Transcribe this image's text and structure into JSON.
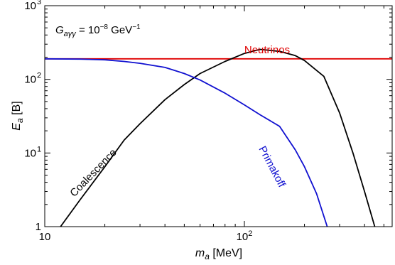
{
  "chart_data": {
    "type": "line",
    "title": "",
    "xlabel": {
      "symbol": "m",
      "subscript": "a",
      "unit": "[MeV]"
    },
    "ylabel": {
      "symbol": "E",
      "subscript": "a",
      "unit": "[B]"
    },
    "x_scale": "log",
    "y_scale": "log",
    "xlim": [
      10,
      550
    ],
    "ylim": [
      1,
      1000
    ],
    "x_ticks": [
      {
        "value": 10,
        "base": "10",
        "exp": ""
      },
      {
        "value": 100,
        "base": "10",
        "exp": "2"
      }
    ],
    "y_ticks": [
      {
        "value": 1,
        "base": "1",
        "exp": ""
      },
      {
        "value": 10,
        "base": "10",
        "exp": "1"
      },
      {
        "value": 100,
        "base": "10",
        "exp": "2"
      },
      {
        "value": 1000,
        "base": "10",
        "exp": "3"
      }
    ],
    "annotation": {
      "symbol": "G",
      "subscript": "aγγ",
      "equals": " = ",
      "value_base": "10",
      "value_exp": "−8",
      "unit_base": " GeV",
      "unit_exp": "−1"
    },
    "series": [
      {
        "name": "Neutrinos",
        "color": "#e00000",
        "label_at": [
          130,
          225
        ],
        "points": [
          [
            10,
            190
          ],
          [
            550,
            190
          ]
        ]
      },
      {
        "name": "Coalescence",
        "color": "#000000",
        "label_at": [
          18,
          5.0
        ],
        "label_rotation": -46,
        "points": [
          [
            12,
            1.0
          ],
          [
            15,
            2.3
          ],
          [
            20,
            6.5
          ],
          [
            25,
            15
          ],
          [
            30,
            25
          ],
          [
            40,
            53
          ],
          [
            50,
            85
          ],
          [
            60,
            120
          ],
          [
            80,
            175
          ],
          [
            100,
            225
          ],
          [
            120,
            255
          ],
          [
            150,
            240
          ],
          [
            180,
            210
          ],
          [
            200,
            180
          ],
          [
            250,
            110
          ],
          [
            300,
            35
          ],
          [
            350,
            10
          ],
          [
            400,
            3
          ],
          [
            450,
            1.0
          ]
        ]
      },
      {
        "name": "Primakoff",
        "color": "#1010d0",
        "label_at": [
          133,
          6.2
        ],
        "label_rotation": 62,
        "points": [
          [
            10,
            190
          ],
          [
            15,
            188
          ],
          [
            20,
            184
          ],
          [
            25,
            175
          ],
          [
            30,
            165
          ],
          [
            40,
            145
          ],
          [
            50,
            120
          ],
          [
            60,
            98
          ],
          [
            80,
            65
          ],
          [
            100,
            45
          ],
          [
            120,
            33
          ],
          [
            150,
            23
          ],
          [
            180,
            11
          ],
          [
            200,
            6.5
          ],
          [
            230,
            2.8
          ],
          [
            260,
            1.0
          ]
        ]
      }
    ]
  }
}
